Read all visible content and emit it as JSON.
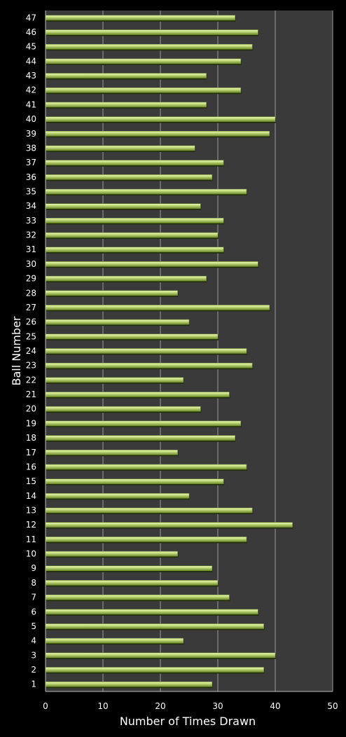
{
  "chart_data": {
    "type": "bar",
    "orientation": "horizontal",
    "xlabel": "Number of Times Drawn",
    "ylabel": "Ball Number",
    "xlim": [
      0,
      50
    ],
    "xticks": [
      0,
      10,
      20,
      30,
      40,
      50
    ],
    "grid": "vertical",
    "legend": "none",
    "categories": [
      "1",
      "2",
      "3",
      "4",
      "5",
      "6",
      "7",
      "8",
      "9",
      "10",
      "11",
      "12",
      "13",
      "14",
      "15",
      "16",
      "17",
      "18",
      "19",
      "20",
      "21",
      "22",
      "23",
      "24",
      "25",
      "26",
      "27",
      "28",
      "29",
      "30",
      "31",
      "32",
      "33",
      "34",
      "35",
      "36",
      "37",
      "38",
      "39",
      "40",
      "41",
      "42",
      "43",
      "44",
      "45",
      "46",
      "47"
    ],
    "values": [
      29,
      38,
      40,
      24,
      38,
      37,
      32,
      30,
      29,
      23,
      35,
      43,
      36,
      25,
      31,
      35,
      23,
      33,
      34,
      27,
      32,
      24,
      36,
      35,
      30,
      25,
      39,
      23,
      28,
      37,
      31,
      30,
      31,
      27,
      35,
      29,
      31,
      26,
      39,
      40,
      28,
      34,
      28,
      34,
      36,
      37,
      33
    ],
    "colors": {
      "background": "#000000",
      "plot_area": "#3a3a3a",
      "bar": "#b4d06c",
      "bar_light": "#e4f2ac",
      "bar_dark": "#6f8a2e",
      "grid": "#9a9a9a",
      "text": "#ffffff"
    }
  }
}
